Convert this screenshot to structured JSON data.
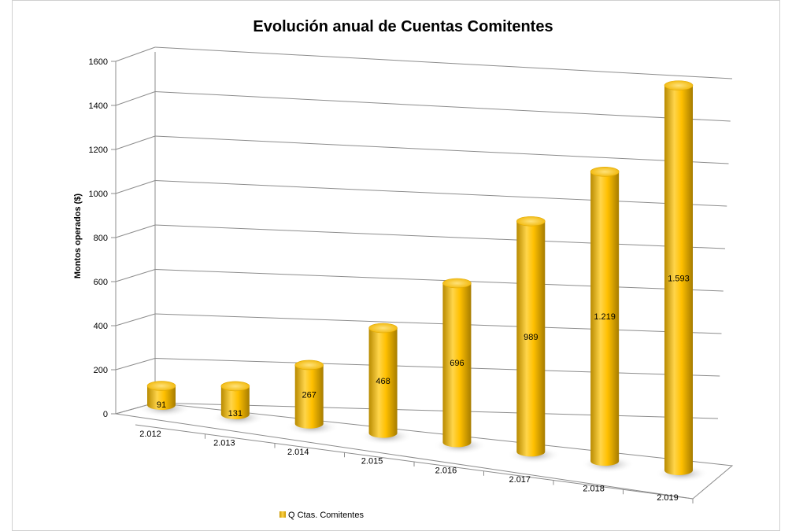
{
  "chart_data": {
    "type": "bar",
    "style": "3d-cylinder",
    "title": "Evolución anual de Cuentas Comitentes",
    "xlabel": "",
    "ylabel": "Montos operados ($)",
    "ylim": [
      0,
      1600
    ],
    "yticks": [
      "0",
      "200",
      "400",
      "600",
      "800",
      "1000",
      "1200",
      "1400",
      "1600"
    ],
    "categories": [
      "2.012",
      "2.013",
      "2.014",
      "2.015",
      "2.016",
      "2.017",
      "2.018",
      "2.019"
    ],
    "series": [
      {
        "name": "Q Ctas. Comitentes",
        "values": [
          91,
          131,
          267,
          468,
          696,
          989,
          1219,
          1593
        ],
        "labels": [
          "91",
          "131",
          "267",
          "468",
          "696",
          "989",
          "1.219",
          "1.593"
        ]
      }
    ],
    "grid": true,
    "legend": "bottom-left",
    "colors": {
      "bar": "#FFC000",
      "bar_dark": "#B88A00",
      "bar_light": "#FFE680",
      "grid": "#8C8C8C"
    }
  }
}
